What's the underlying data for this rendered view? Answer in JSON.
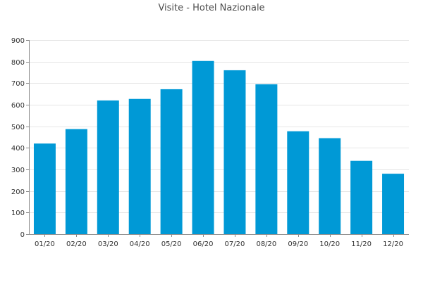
{
  "chart_data": {
    "type": "bar",
    "title": "Visite - Hotel Nazionale",
    "xlabel": "",
    "ylabel": "",
    "categories": [
      "01/20",
      "02/20",
      "03/20",
      "04/20",
      "05/20",
      "06/20",
      "07/20",
      "08/20",
      "09/20",
      "10/20",
      "11/20",
      "12/20"
    ],
    "values": [
      420,
      487,
      620,
      627,
      672,
      803,
      760,
      695,
      477,
      445,
      340,
      280
    ],
    "ylim": [
      0,
      900
    ],
    "yticks": [
      0,
      100,
      200,
      300,
      400,
      500,
      600,
      700,
      800,
      900
    ],
    "grid": true,
    "legend": "none",
    "bar_color": "#0099d6"
  }
}
